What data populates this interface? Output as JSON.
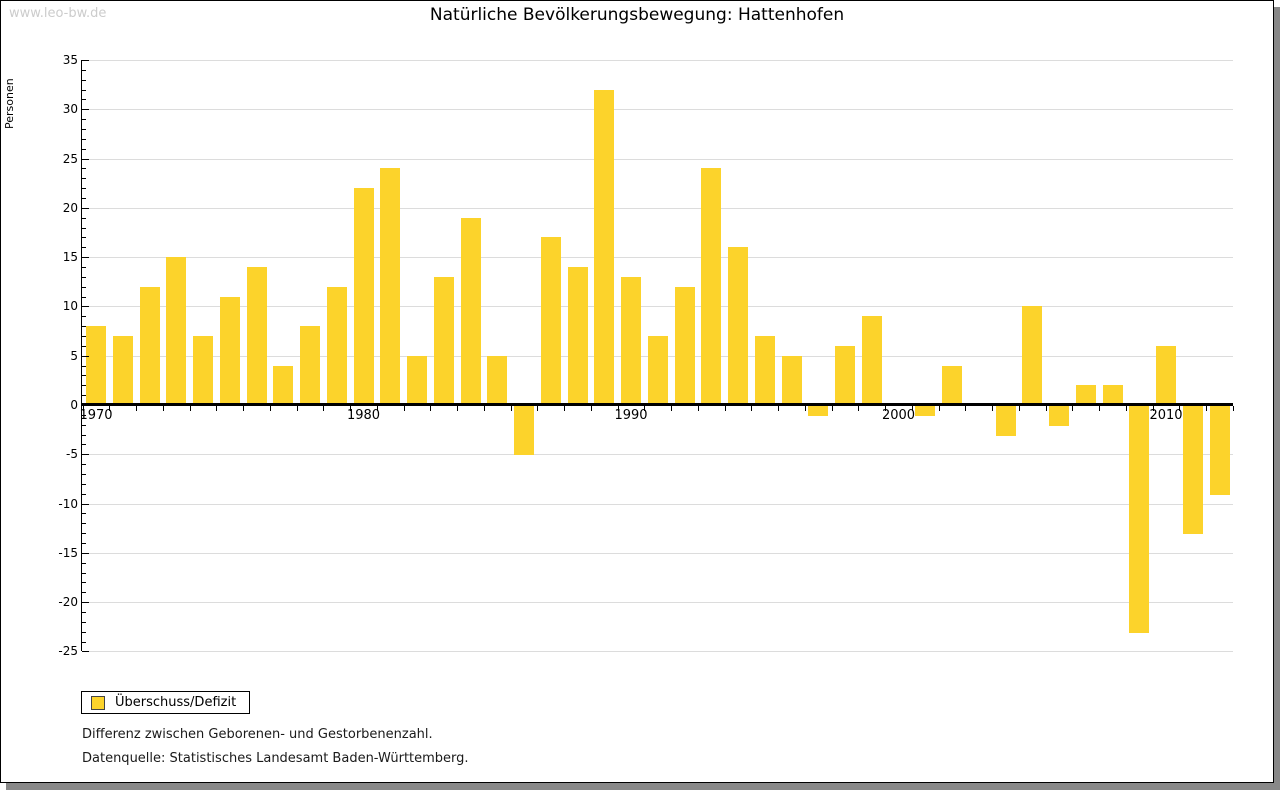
{
  "watermark": "www.leo-bw.de",
  "title": "Natürliche Bevölkerungsbewegung: Hattenhofen",
  "legend": {
    "label": "Überschuss/Defizit"
  },
  "notes": [
    "Differenz zwischen Geborenen- und Gestorbenenzahl.",
    "Datenquelle: Statistisches Landesamt Baden-Württemberg."
  ],
  "y_axis": {
    "label": "Personen",
    "ticks": [
      35,
      30,
      25,
      20,
      15,
      10,
      5,
      0,
      -5,
      -10,
      -15,
      -20,
      -25
    ]
  },
  "x_axis": {
    "decade_labels": [
      "1970",
      "1980",
      "1990",
      "2000",
      "2010"
    ]
  },
  "colors": {
    "bar": "#FCD32B",
    "grid": "#DCDCDC",
    "shadow": "#888888",
    "watermark": "#CCCCCC"
  },
  "chart_data": {
    "type": "bar",
    "title": "Natürliche Bevölkerungsbewegung: Hattenhofen",
    "xlabel": "",
    "ylabel": "Personen",
    "ylim": [
      -25,
      35
    ],
    "grid": true,
    "legend_position": "bottom-left",
    "series_name": "Überschuss/Defizit",
    "years": [
      1970,
      1971,
      1972,
      1973,
      1974,
      1975,
      1976,
      1977,
      1978,
      1979,
      1980,
      1981,
      1982,
      1983,
      1984,
      1985,
      1986,
      1987,
      1988,
      1989,
      1990,
      1991,
      1992,
      1993,
      1994,
      1995,
      1996,
      1997,
      1998,
      1999,
      2000,
      2001,
      2002,
      2003,
      2004,
      2005,
      2006,
      2007,
      2008,
      2009,
      2010,
      2011,
      2012
    ],
    "values": [
      8,
      7,
      12,
      15,
      7,
      11,
      14,
      4,
      8,
      12,
      22,
      24,
      5,
      13,
      19,
      5,
      -5,
      17,
      14,
      32,
      13,
      7,
      12,
      24,
      16,
      7,
      5,
      -1,
      6,
      9,
      0,
      -1,
      4,
      0,
      -3,
      10,
      -2,
      2,
      2,
      -23,
      6,
      -13,
      -9
    ]
  }
}
